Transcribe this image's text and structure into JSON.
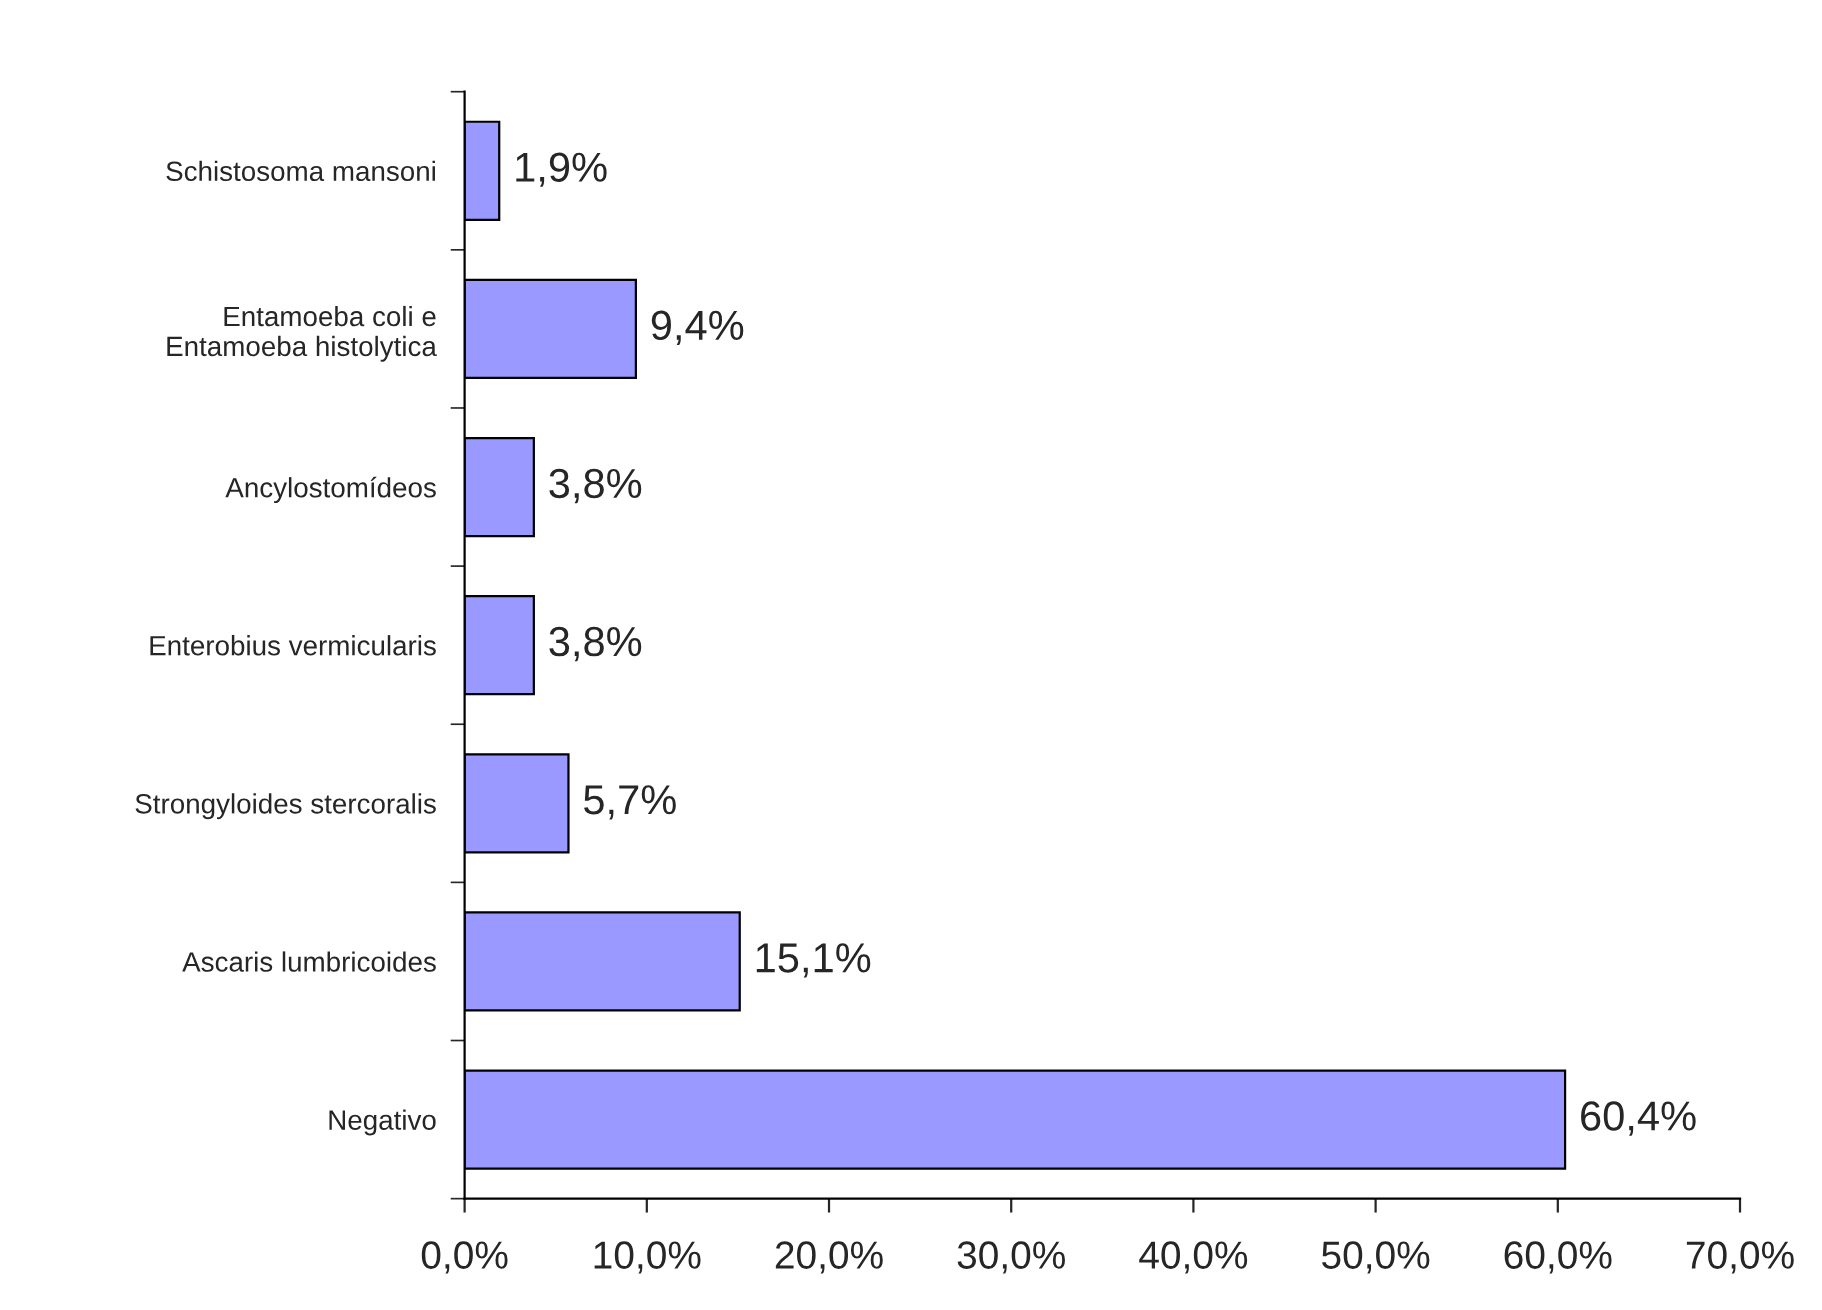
{
  "chart_data": {
    "type": "bar",
    "orientation": "horizontal",
    "categories": [
      "Schistosoma mansoni",
      "Entamoeba coli e\nEntamoeba histolytica",
      "Ancylostomídeos",
      "Enterobius vermicularis",
      "Strongyloides stercoralis",
      "Ascaris lumbricoides",
      "Negativo"
    ],
    "values": [
      1.9,
      9.4,
      3.8,
      3.8,
      5.7,
      15.1,
      60.4
    ],
    "value_labels": [
      "1,9%",
      "9,4%",
      "3,8%",
      "3,8%",
      "5,7%",
      "15,1%",
      "60,4%"
    ],
    "color": "#9999ff",
    "xlim": [
      0,
      70
    ],
    "xticks": [
      {
        "value": 0,
        "label": "0,0%"
      },
      {
        "value": 10,
        "label": "10,0%"
      },
      {
        "value": 20,
        "label": "20,0%"
      },
      {
        "value": 30,
        "label": "30,0%"
      },
      {
        "value": 40,
        "label": "40,0%"
      },
      {
        "value": 50,
        "label": "50,0%"
      },
      {
        "value": 60,
        "label": "60,0%"
      },
      {
        "value": 70,
        "label": "70,0%"
      }
    ],
    "grid": false,
    "legend": false
  }
}
